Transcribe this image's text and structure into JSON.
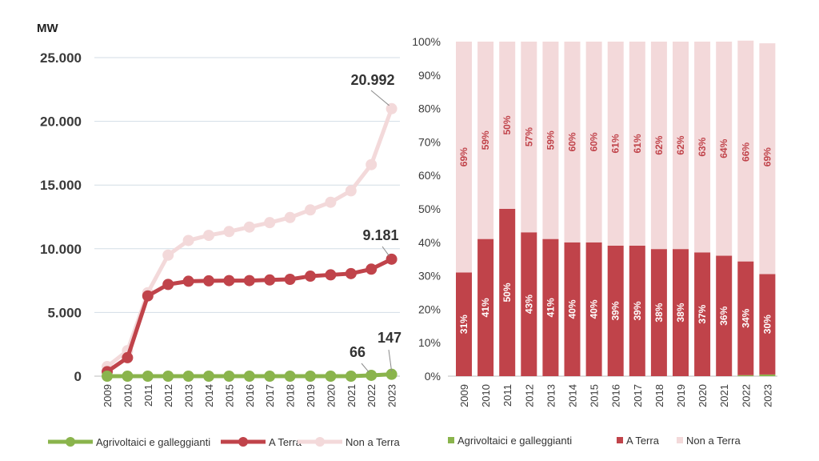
{
  "chart_data": [
    {
      "type": "line",
      "ylabel": "MW",
      "ylim": [
        0,
        25000
      ],
      "yticks": [
        "0",
        "5.000",
        "10.000",
        "15.000",
        "20.000",
        "25.000"
      ],
      "ytick_values": [
        0,
        5000,
        10000,
        15000,
        20000,
        25000
      ],
      "grid": true,
      "legend_position": "bottom",
      "categories": [
        "2009",
        "2010",
        "2011",
        "2012",
        "2013",
        "2014",
        "2015",
        "2016",
        "2017",
        "2018",
        "2019",
        "2020",
        "2021",
        "2022",
        "2023"
      ],
      "series": [
        {
          "name": "Agrivoltaici e galleggianti",
          "color": "#8ab44c",
          "values": [
            0,
            0,
            0,
            0,
            0,
            0,
            0,
            0,
            0,
            0,
            0,
            0,
            0,
            66,
            147
          ]
        },
        {
          "name": "A Terra",
          "color": "#c0434a",
          "values": [
            350,
            1450,
            6300,
            7200,
            7450,
            7480,
            7500,
            7500,
            7550,
            7600,
            7850,
            7950,
            8050,
            8400,
            9181
          ]
        },
        {
          "name": "Non a Terra",
          "color": "#f3d9da",
          "values": [
            750,
            2000,
            6550,
            9500,
            10650,
            11050,
            11350,
            11700,
            12050,
            12450,
            13050,
            13650,
            14550,
            16600,
            20992
          ]
        }
      ],
      "annotations": [
        {
          "series": 2,
          "index": 14,
          "text": "20.992"
        },
        {
          "series": 1,
          "index": 14,
          "text": "9.181"
        },
        {
          "series": 0,
          "index": 13,
          "text": "66"
        },
        {
          "series": 0,
          "index": 14,
          "text": "147"
        }
      ]
    },
    {
      "type": "bar",
      "stacked": true,
      "ylim": [
        0,
        100
      ],
      "yticks": [
        "0%",
        "10%",
        "20%",
        "30%",
        "40%",
        "50%",
        "60%",
        "70%",
        "80%",
        "90%",
        "100%"
      ],
      "legend_position": "bottom",
      "categories": [
        "2009",
        "2010",
        "2011",
        "2012",
        "2013",
        "2014",
        "2015",
        "2016",
        "2017",
        "2018",
        "2019",
        "2020",
        "2021",
        "2022",
        "2023"
      ],
      "series": [
        {
          "name": "Agrivoltaici e galleggianti",
          "color": "#8ab44c",
          "values": [
            0,
            0,
            0,
            0,
            0,
            0,
            0,
            0,
            0,
            0,
            0,
            0,
            0,
            0.3,
            0.5
          ]
        },
        {
          "name": "A Terra",
          "color": "#c0434a",
          "values": [
            31,
            41,
            50,
            43,
            41,
            40,
            40,
            39,
            39,
            38,
            38,
            37,
            36,
            34,
            30
          ],
          "labels": [
            "31%",
            "41%",
            "50%",
            "43%",
            "41%",
            "40%",
            "40%",
            "39%",
            "39%",
            "38%",
            "38%",
            "37%",
            "36%",
            "34%",
            "30%"
          ]
        },
        {
          "name": "Non a Terra",
          "color": "#f3d9da",
          "values": [
            69,
            59,
            50,
            57,
            59,
            60,
            60,
            61,
            61,
            62,
            62,
            63,
            64,
            66,
            69
          ],
          "labels": [
            "69%",
            "59%",
            "50%",
            "57%",
            "59%",
            "60%",
            "60%",
            "61%",
            "61%",
            "62%",
            "62%",
            "63%",
            "64%",
            "66%",
            "69%"
          ]
        }
      ]
    }
  ]
}
